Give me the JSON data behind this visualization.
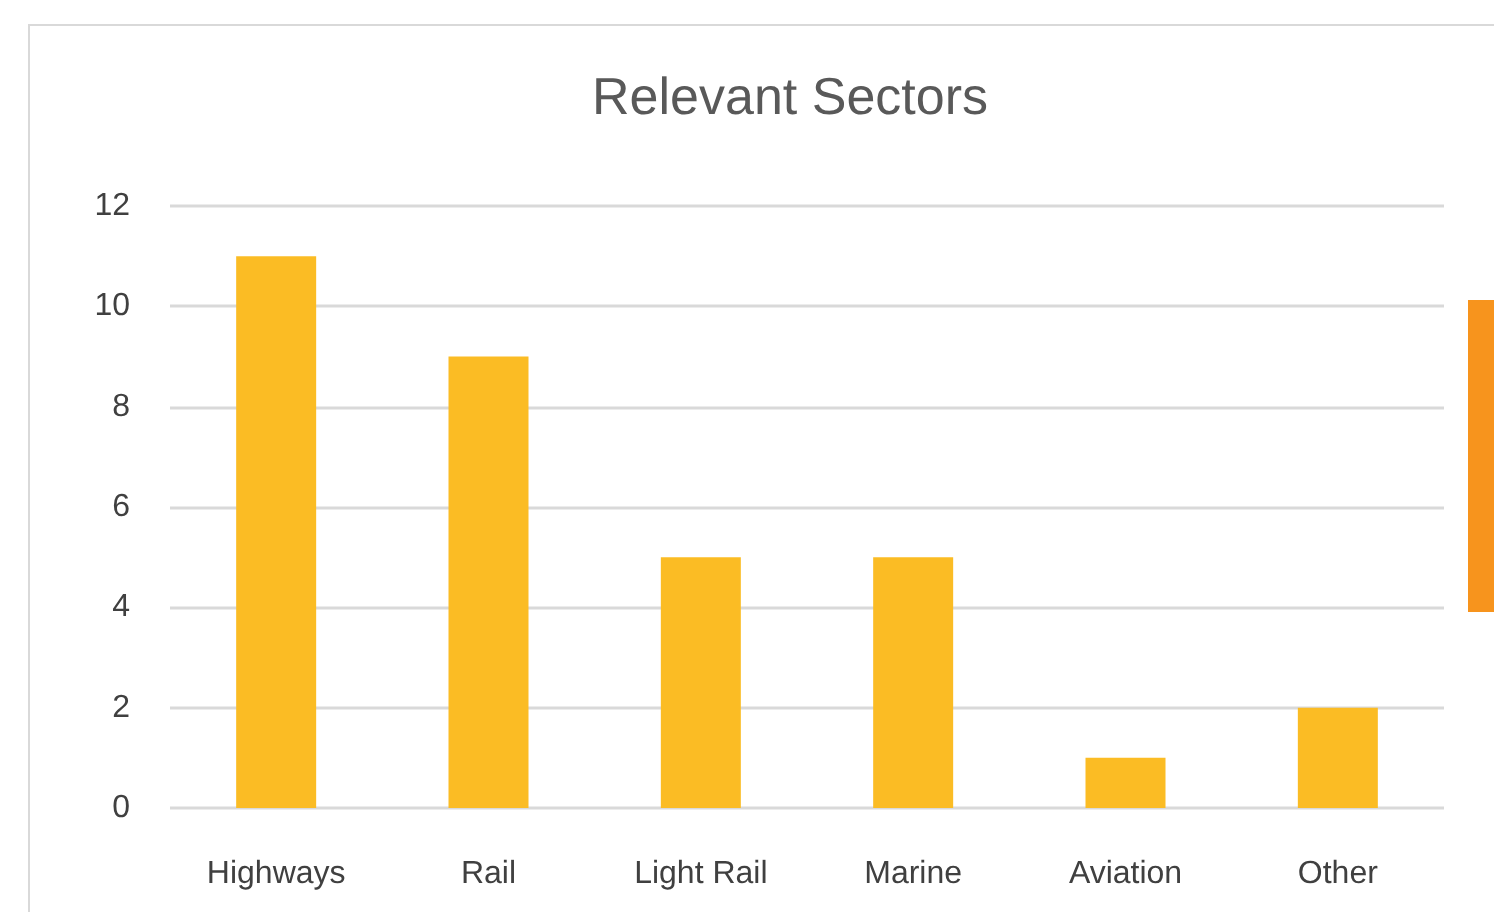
{
  "chart_data": {
    "type": "bar",
    "title": "Relevant Sectors",
    "categories": [
      "Highways",
      "Rail",
      "Light Rail",
      "Marine",
      "Aviation",
      "Other"
    ],
    "values": [
      11,
      9,
      5,
      5,
      1,
      2
    ],
    "color": "#fbbc24",
    "ylim": [
      0,
      12
    ],
    "yticks": [
      0,
      2,
      4,
      6,
      8,
      10,
      12
    ],
    "grid": "y"
  }
}
